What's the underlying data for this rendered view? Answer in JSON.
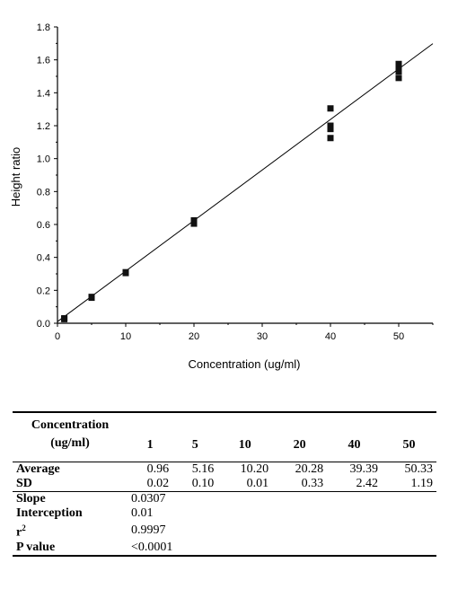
{
  "chart_data": {
    "type": "scatter",
    "xlabel": "Concentration (ug/ml)",
    "ylabel": "Height ratio",
    "xlim": [
      0,
      55
    ],
    "ylim": [
      0,
      1.8
    ],
    "x_ticks": [
      0,
      10,
      20,
      30,
      40,
      50
    ],
    "y_ticks": [
      0.0,
      0.2,
      0.4,
      0.6,
      0.8,
      1.0,
      1.2,
      1.4,
      1.6,
      1.8
    ],
    "y_tick_labels": [
      "0.0",
      "0.2",
      "0.4",
      "0.6",
      "0.8",
      "1.0",
      "1.2",
      "1.4",
      "1.6",
      "1.8"
    ],
    "grid": false,
    "points": [
      {
        "x": 1,
        "y": 0.025
      },
      {
        "x": 1,
        "y": 0.03
      },
      {
        "x": 5,
        "y": 0.155
      },
      {
        "x": 5,
        "y": 0.16
      },
      {
        "x": 10,
        "y": 0.305
      },
      {
        "x": 10,
        "y": 0.31
      },
      {
        "x": 20,
        "y": 0.605
      },
      {
        "x": 20,
        "y": 0.625
      },
      {
        "x": 40,
        "y": 1.125
      },
      {
        "x": 40,
        "y": 1.18
      },
      {
        "x": 40,
        "y": 1.2
      },
      {
        "x": 40,
        "y": 1.305
      },
      {
        "x": 50,
        "y": 1.49
      },
      {
        "x": 50,
        "y": 1.53
      },
      {
        "x": 50,
        "y": 1.555
      },
      {
        "x": 50,
        "y": 1.575
      }
    ],
    "fit_line": {
      "slope": 0.0307,
      "intercept": 0.01,
      "x_range": [
        0,
        55
      ]
    }
  },
  "table": {
    "header_label": "Concentration (ug/ml)",
    "concentrations": [
      "1",
      "5",
      "10",
      "20",
      "40",
      "50"
    ],
    "average_label": "Average",
    "average": [
      "0.96",
      "5.16",
      "10.20",
      "20.28",
      "39.39",
      "50.33"
    ],
    "sd_label": "SD",
    "sd": [
      "0.02",
      "0.10",
      "0.01",
      "0.33",
      "2.42",
      "1.19"
    ],
    "slope_label": "Slope",
    "slope": "0.0307",
    "interception_label": "Interception",
    "interception": "0.01",
    "r2_label": "r",
    "r2_sup": "2",
    "r2": "0.9997",
    "p_label": "P value",
    "p": "<0.0001"
  }
}
